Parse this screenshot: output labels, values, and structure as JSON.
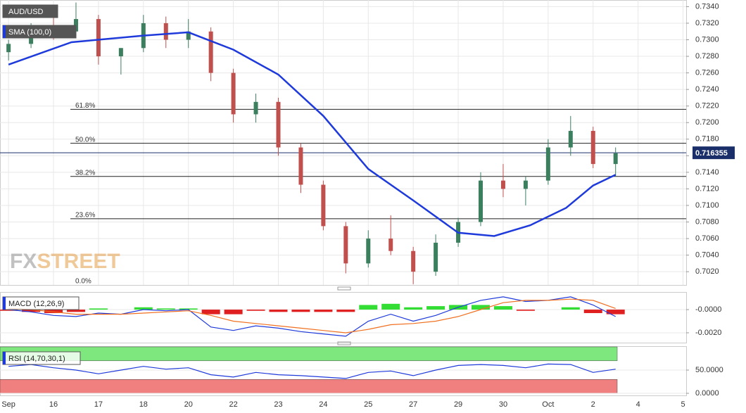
{
  "chart_data": [
    {
      "type": "candlestick",
      "title": "AUD/USD",
      "x": [
        0,
        0.5,
        1,
        1.5,
        2,
        2.5,
        3,
        3.5,
        4,
        4.5,
        5,
        5.5,
        6,
        6.5,
        7,
        7.5,
        8,
        8.5,
        9,
        9.5,
        10,
        10.5,
        11,
        11.5,
        12,
        12.5,
        13,
        13.5
      ],
      "open": [
        0.7285,
        0.7295,
        0.7315,
        0.731,
        0.7325,
        0.728,
        0.729,
        0.732,
        0.73,
        0.731,
        0.726,
        0.721,
        0.7225,
        0.717,
        0.7125,
        0.7075,
        0.703,
        0.706,
        0.7045,
        0.702,
        0.7055,
        0.708,
        0.713,
        0.712,
        0.713,
        0.717,
        0.719,
        0.715
      ],
      "high": [
        0.73,
        0.732,
        0.733,
        0.7345,
        0.733,
        0.729,
        0.733,
        0.7328,
        0.7325,
        0.7315,
        0.7265,
        0.7235,
        0.723,
        0.7175,
        0.713,
        0.708,
        0.707,
        0.7088,
        0.705,
        0.7065,
        0.7085,
        0.714,
        0.715,
        0.7135,
        0.718,
        0.7208,
        0.7195,
        0.717
      ],
      "low": [
        0.7275,
        0.729,
        0.73,
        0.7305,
        0.727,
        0.7258,
        0.7285,
        0.729,
        0.729,
        0.725,
        0.72,
        0.72,
        0.716,
        0.7115,
        0.707,
        0.7018,
        0.7025,
        0.704,
        0.7005,
        0.7015,
        0.705,
        0.7075,
        0.711,
        0.71,
        0.7125,
        0.716,
        0.7145,
        0.7135
      ],
      "close": [
        0.7295,
        0.7315,
        0.731,
        0.7325,
        0.728,
        0.729,
        0.732,
        0.73,
        0.731,
        0.726,
        0.721,
        0.7225,
        0.717,
        0.7125,
        0.7075,
        0.703,
        0.706,
        0.7045,
        0.702,
        0.7055,
        0.708,
        0.713,
        0.712,
        0.713,
        0.717,
        0.719,
        0.715,
        0.7163
      ],
      "up_color": "#3b7f5f",
      "down_color": "#c0504d",
      "sma": {
        "name": "SMA (100,0)",
        "color": "#1e3adb",
        "x": [
          0,
          1.4,
          3,
          4,
          5,
          6,
          7,
          8,
          9,
          10,
          10.8,
          11.6,
          12.4,
          13,
          13.5
        ],
        "values": [
          0.727,
          0.7297,
          0.7305,
          0.7309,
          0.7288,
          0.7258,
          0.7208,
          0.7144,
          0.7106,
          0.7067,
          0.7063,
          0.7076,
          0.7097,
          0.7124,
          0.7137
        ]
      },
      "fib": [
        {
          "label": "61.8%",
          "value": 0.7216
        },
        {
          "label": "50.0%",
          "value": 0.7175
        },
        {
          "label": "38.2%",
          "value": 0.7135
        },
        {
          "label": "23.6%",
          "value": 0.7084
        },
        {
          "label": "0.0%",
          "value": 0.7004
        }
      ],
      "last_price": 0.716355,
      "watermark": [
        "FX",
        "STREET"
      ],
      "xlim": [
        -0.19,
        15.07
      ],
      "ylim": [
        0.7004,
        0.7348
      ],
      "yticks": [
        {
          "value": 0.702,
          "label": "0.7020"
        },
        {
          "value": 0.704,
          "label": "0.7040"
        },
        {
          "value": 0.706,
          "label": "0.7060"
        },
        {
          "value": 0.708,
          "label": "0.7080"
        },
        {
          "value": 0.71,
          "label": "0.7100"
        },
        {
          "value": 0.712,
          "label": "0.7120"
        },
        {
          "value": 0.714,
          "label": "0.7140"
        },
        {
          "value": 0.716,
          "label": "0.7160"
        },
        {
          "value": 0.718,
          "label": "0.7180"
        },
        {
          "value": 0.72,
          "label": "0.7200"
        },
        {
          "value": 0.722,
          "label": "0.7220"
        },
        {
          "value": 0.724,
          "label": "0.7240"
        },
        {
          "value": 0.726,
          "label": "0.7260"
        },
        {
          "value": 0.728,
          "label": "0.7280"
        },
        {
          "value": 0.73,
          "label": "0.7300"
        },
        {
          "value": 0.732,
          "label": "0.7320"
        },
        {
          "value": 0.734,
          "label": "0.7340"
        }
      ],
      "xticks": [
        {
          "value": 0,
          "label": "Sep"
        },
        {
          "value": 1,
          "label": "16"
        },
        {
          "value": 2,
          "label": "17"
        },
        {
          "value": 3,
          "label": "18"
        },
        {
          "value": 4,
          "label": "20"
        },
        {
          "value": 5,
          "label": "22"
        },
        {
          "value": 6,
          "label": "23"
        },
        {
          "value": 7,
          "label": "24"
        },
        {
          "value": 8,
          "label": "25"
        },
        {
          "value": 9,
          "label": "27"
        },
        {
          "value": 10,
          "label": "29"
        },
        {
          "value": 11,
          "label": "30"
        },
        {
          "value": 12,
          "label": "Oct"
        },
        {
          "value": 13,
          "label": "2"
        },
        {
          "value": 14,
          "label": "4"
        },
        {
          "value": 15,
          "label": "5"
        }
      ],
      "grid": true
    },
    {
      "type": "macd",
      "title": "MACD (12,26,9)",
      "lines": [
        {
          "color": "#1e3adb",
          "values": [
            0,
            -0.0002,
            -0.0005,
            -0.0006,
            -0.0003,
            -0.0004,
            0,
            -0.0001,
            0,
            -0.0015,
            -0.0018,
            -0.0014,
            -0.0016,
            -0.0019,
            -0.0021,
            -0.0023,
            -0.001,
            -0.0004,
            -0.001,
            -0.0005,
            0.0002,
            0.0008,
            0.0011,
            0.0007,
            0.0008,
            0.0011,
            0.0004,
            -0.0006
          ]
        },
        {
          "color": "#f07020",
          "values": [
            0.0001,
            0,
            -0.0002,
            -0.0004,
            -0.0004,
            -0.0004,
            -0.0003,
            -0.0002,
            -0.0001,
            -0.0005,
            -0.001,
            -0.0012,
            -0.0014,
            -0.0016,
            -0.0018,
            -0.002,
            -0.0017,
            -0.0013,
            -0.0012,
            -0.001,
            -0.0006,
            0,
            0.0006,
            0.0008,
            0.0008,
            0.0009,
            0.0008,
            0.0001
          ]
        }
      ],
      "histogram": {
        "up_color": "#33dd33",
        "down_color": "#e02020",
        "values": [
          -0.0001,
          -0.0002,
          -0.0003,
          -0.0002,
          0.0001,
          0,
          0.0002,
          0.0001,
          0.0001,
          -0.0004,
          -0.0004,
          -0.0001,
          -0.0002,
          -0.0002,
          -0.0002,
          -0.0002,
          0.0004,
          0.0005,
          0.0002,
          0.0003,
          0.0004,
          0.0004,
          0.0003,
          -0.0001,
          0,
          0.0002,
          -0.0003,
          -0.0004
        ]
      },
      "ylim": [
        -0.00285,
        0.00152
      ],
      "yticks": [
        {
          "value": 0,
          "label": "-0.0000"
        },
        {
          "value": -0.002,
          "label": "-0.0020"
        }
      ]
    },
    {
      "type": "rsi",
      "title": "RSI (14,70,30,1)",
      "color": "#1e3adb",
      "values": [
        58,
        62,
        55,
        50,
        42,
        50,
        58,
        52,
        55,
        40,
        35,
        45,
        40,
        38,
        35,
        32,
        45,
        48,
        38,
        50,
        60,
        62,
        60,
        55,
        63,
        62,
        45,
        52
      ],
      "bands": [
        {
          "range": [
            70,
            100
          ],
          "color": "#7ee87e"
        },
        {
          "range": [
            0,
            30
          ],
          "color": "#f08080"
        }
      ],
      "ylim": [
        -4.5,
        101.5
      ],
      "yticks": [
        {
          "value": 50,
          "label": "50.0000"
        },
        {
          "value": 0,
          "label": "0.0000"
        }
      ]
    }
  ]
}
